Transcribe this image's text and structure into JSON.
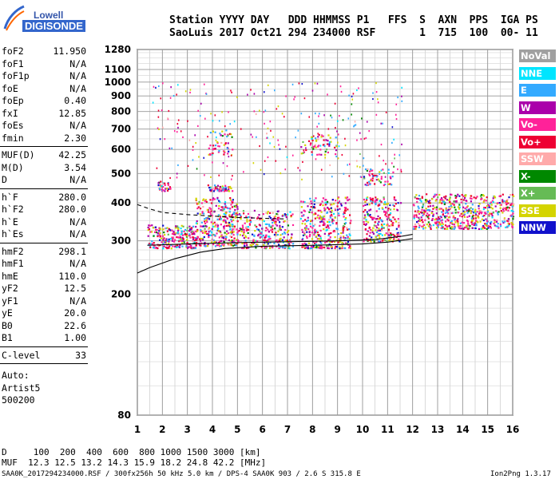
{
  "logo": {
    "top": "Lowell",
    "bottom": "DIGISONDE"
  },
  "header": {
    "line1": "Station YYYY DAY   DDD HHMMSS P1   FFS  S  AXN  PPS  IGA PS",
    "line2": "SaoLuis 2017 Oct21 294 234000 RSF       1  715  100  00- 11"
  },
  "params": {
    "group1": [
      {
        "k": "foF2",
        "v": "11.950"
      },
      {
        "k": "foF1",
        "v": "N/A"
      },
      {
        "k": "foF1p",
        "v": "N/A"
      },
      {
        "k": "foE",
        "v": "N/A"
      },
      {
        "k": "foEp",
        "v": "0.40"
      },
      {
        "k": "fxI",
        "v": "12.85"
      },
      {
        "k": "foEs",
        "v": "N/A"
      },
      {
        "k": "fmin",
        "v": "2.30"
      }
    ],
    "group2": [
      {
        "k": "MUF(D)",
        "v": "42.25"
      },
      {
        "k": "M(D)",
        "v": "3.54"
      },
      {
        "k": "D",
        "v": "N/A"
      }
    ],
    "group3": [
      {
        "k": "h`F",
        "v": "280.0"
      },
      {
        "k": "h`F2",
        "v": "280.0"
      },
      {
        "k": "h`E",
        "v": "N/A"
      },
      {
        "k": "h`Es",
        "v": "N/A"
      }
    ],
    "group4": [
      {
        "k": "hmF2",
        "v": "298.1"
      },
      {
        "k": "hmF1",
        "v": "N/A"
      },
      {
        "k": "hmE",
        "v": "110.0"
      },
      {
        "k": "yF2",
        "v": "12.5"
      },
      {
        "k": "yF1",
        "v": "N/A"
      },
      {
        "k": "yE",
        "v": "20.0"
      },
      {
        "k": "B0",
        "v": "22.6"
      },
      {
        "k": "B1",
        "v": "1.00"
      }
    ],
    "group5": [
      {
        "k": "C-level",
        "v": "33"
      }
    ],
    "auto": [
      "Auto:",
      "Artist5",
      "500200"
    ]
  },
  "legend": [
    {
      "label": "NoVal",
      "color": "#a0a0a0"
    },
    {
      "label": "NNE",
      "color": "#00e5ff"
    },
    {
      "label": "E",
      "color": "#33aaff"
    },
    {
      "label": "W",
      "color": "#aa00aa"
    },
    {
      "label": "Vo-",
      "color": "#ff2299"
    },
    {
      "label": "Vo+",
      "color": "#ee0033"
    },
    {
      "label": "SSW",
      "color": "#ffaaaa"
    },
    {
      "label": "X-",
      "color": "#008800"
    },
    {
      "label": "X+",
      "color": "#66bb55"
    },
    {
      "label": "SSE",
      "color": "#d4d400"
    },
    {
      "label": "NNW",
      "color": "#1111cc"
    }
  ],
  "bottom": {
    "d_line": "D     100  200  400  600  800 1000 1500 3000 [km]",
    "muf_line": "MUF  12.3 12.5 13.2 14.3 15.9 18.2 24.8 42.2 [MHz]",
    "footer_left": "SAA0K_2017294234000.RSF / 300fx256h 50 kHz 5.0 km / DPS-4 SAA0K 903 / 2.6 S 315.8 E",
    "footer_right": "Ion2Png 1.3.17"
  },
  "chart_data": {
    "type": "scatter",
    "xlim": [
      1,
      16
    ],
    "ylim": [
      80,
      1280
    ],
    "y_scale": "log",
    "x_ticks": [
      1,
      2,
      3,
      4,
      5,
      6,
      7,
      8,
      9,
      10,
      11,
      12,
      13,
      14,
      15,
      16
    ],
    "y_ticks": [
      80,
      200,
      300,
      400,
      500,
      600,
      700,
      800,
      900,
      1000,
      1100,
      1280
    ],
    "grid": true,
    "legend_position": "right",
    "clusters": [
      {
        "x": [
          1.4,
          3.3
        ],
        "y": [
          285,
          340
        ],
        "density": 0.9
      },
      {
        "x": [
          3.3,
          5.0
        ],
        "y": [
          290,
          420
        ],
        "density": 0.9
      },
      {
        "x": [
          5.0,
          7.2
        ],
        "y": [
          285,
          380
        ],
        "density": 0.7
      },
      {
        "x": [
          7.5,
          9.5
        ],
        "y": [
          285,
          420
        ],
        "density": 0.8
      },
      {
        "x": [
          10.0,
          11.5
        ],
        "y": [
          300,
          420
        ],
        "density": 0.8
      },
      {
        "x": [
          12.0,
          16.0
        ],
        "y": [
          330,
          430
        ],
        "density": 0.85
      },
      {
        "x": [
          3.8,
          4.8
        ],
        "y": [
          440,
          460
        ],
        "density": 0.7
      },
      {
        "x": [
          1.8,
          2.3
        ],
        "y": [
          440,
          475
        ],
        "density": 0.7
      },
      {
        "x": [
          3.8,
          4.8
        ],
        "y": [
          580,
          700
        ],
        "density": 0.35
      },
      {
        "x": [
          7.5,
          9.0
        ],
        "y": [
          580,
          680
        ],
        "density": 0.3
      },
      {
        "x": [
          10.0,
          11.2
        ],
        "y": [
          460,
          520
        ],
        "density": 0.4
      }
    ],
    "curves": [
      {
        "name": "profile",
        "style": "solid",
        "x": [
          1.0,
          1.5,
          2.5,
          3.5,
          4.5,
          6.0,
          8.0,
          10.0,
          11.0,
          12.0
        ],
        "y": [
          235,
          245,
          262,
          275,
          283,
          288,
          290,
          293,
          297,
          305
        ]
      },
      {
        "name": "profile-2",
        "style": "solid",
        "x": [
          1.4,
          3.0,
          5.0,
          7.0,
          9.0,
          10.5,
          11.5,
          12.0
        ],
        "y": [
          290,
          293,
          296,
          298,
          300,
          303,
          310,
          315
        ]
      },
      {
        "name": "profile-dashed",
        "style": "dashed",
        "x": [
          1.0,
          1.5,
          2.0,
          3.0,
          4.0,
          5.0,
          6.0,
          7.0
        ],
        "y": [
          395,
          382,
          372,
          366,
          362,
          358,
          356,
          354
        ]
      }
    ]
  }
}
